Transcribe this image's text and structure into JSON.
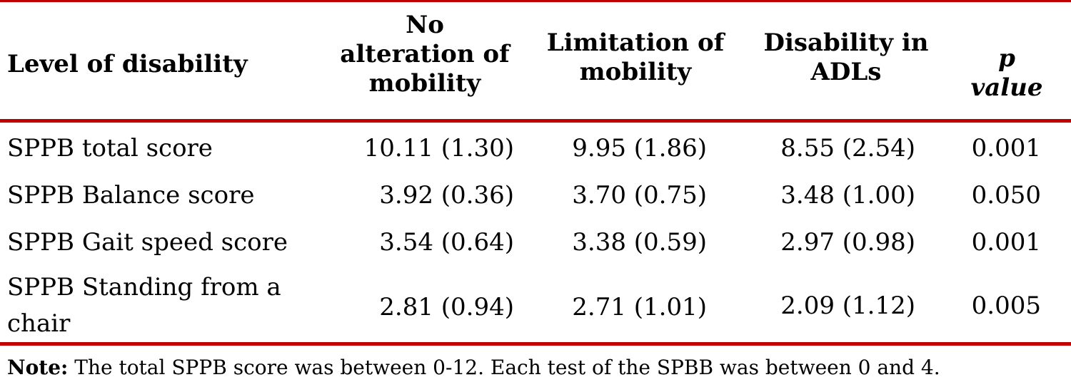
{
  "table": {
    "headers": {
      "level": "Level of disability",
      "no_alteration": [
        "No",
        "alteration of",
        "mobility"
      ],
      "limitation": [
        "Limitation of",
        "mobility"
      ],
      "disability": [
        "Disability in",
        "ADLs"
      ],
      "p_value": [
        "p",
        "value"
      ]
    },
    "rows": [
      {
        "label": [
          "SPPB total score"
        ],
        "no_alteration": "10.11 (1.30)",
        "limitation": "9.95 (1.86)",
        "disability": "8.55 (2.54)",
        "p": "0.001"
      },
      {
        "label": [
          "SPPB Balance score"
        ],
        "no_alteration": "3.92 (0.36)",
        "limitation": "3.70 (0.75)",
        "disability": "3.48 (1.00)",
        "p": "0.050"
      },
      {
        "label": [
          "SPPB Gait speed score"
        ],
        "no_alteration": "3.54 (0.64)",
        "limitation": "3.38 (0.59)",
        "disability": "2.97 (0.98)",
        "p": "0.001"
      },
      {
        "label": [
          "SPPB Standing from a",
          "chair"
        ],
        "no_alteration": "2.81 (0.94)",
        "limitation": "2.71 (1.01)",
        "disability": "2.09 (1.12)",
        "p": "0.005"
      }
    ],
    "rule_color": "#c00000"
  },
  "note": {
    "label": "Note:",
    "text": "The total SPPB score was between 0-12. Each test of the SPBB was between 0 and 4."
  }
}
